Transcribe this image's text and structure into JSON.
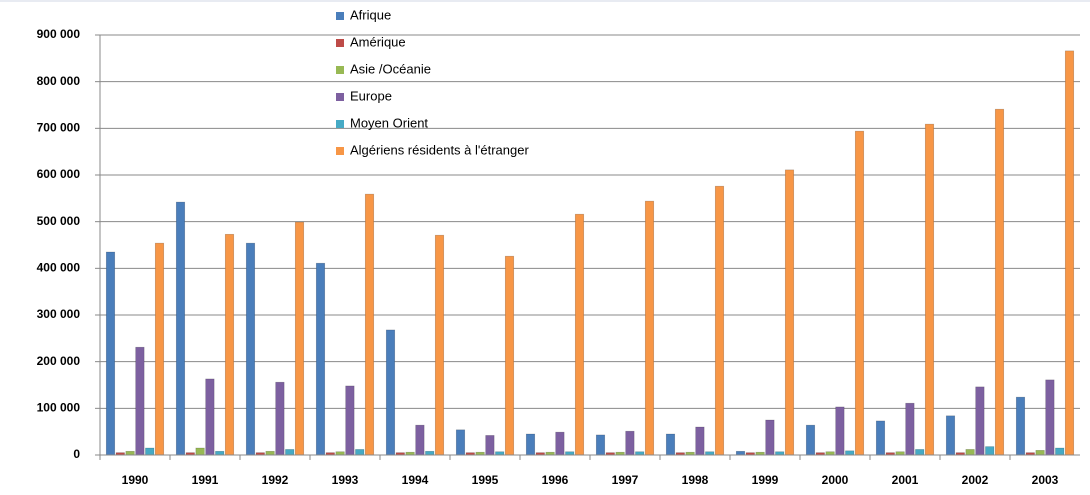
{
  "chart_data": {
    "type": "bar",
    "categories": [
      "1990",
      "1991",
      "1992",
      "1993",
      "1994",
      "1995",
      "1996",
      "1997",
      "1998",
      "1999",
      "2000",
      "2001",
      "2002",
      "2003"
    ],
    "series": [
      {
        "name": "Afrique",
        "color": "#4a7ebb",
        "values": [
          435000,
          542000,
          454000,
          411000,
          268000,
          54000,
          45000,
          43000,
          45000,
          8000,
          64000,
          73000,
          84000,
          124000
        ]
      },
      {
        "name": "Amérique",
        "color": "#be4b48",
        "values": [
          5000,
          5000,
          5000,
          5000,
          5000,
          5000,
          5000,
          5000,
          5000,
          5000,
          5000,
          5000,
          5000,
          5000
        ]
      },
      {
        "name": "Asie /Océanie",
        "color": "#98b954",
        "values": [
          8000,
          15000,
          8000,
          7000,
          6000,
          6000,
          6000,
          6000,
          6000,
          6000,
          7000,
          7000,
          12000,
          10000
        ]
      },
      {
        "name": "Europe",
        "color": "#7d60a0",
        "values": [
          231000,
          163000,
          156000,
          148000,
          64000,
          42000,
          49000,
          51000,
          60000,
          75000,
          103000,
          111000,
          146000,
          161000
        ]
      },
      {
        "name": "Moyen Orient",
        "color": "#46aac5",
        "values": [
          15000,
          8000,
          12000,
          12000,
          8000,
          7000,
          7000,
          7000,
          7000,
          7000,
          9000,
          12000,
          18000,
          15000
        ]
      },
      {
        "name": "Algériens résidents à l'étranger",
        "color": "#f79646",
        "values": [
          454000,
          473000,
          499000,
          559000,
          471000,
          426000,
          516000,
          544000,
          576000,
          611000,
          694000,
          709000,
          741000,
          866000
        ]
      }
    ],
    "ylim": [
      0,
      900000
    ],
    "yticks": [
      0,
      {
        "value": 100000,
        "label": "100 000"
      },
      {
        "value": 200000,
        "label": "200 000"
      },
      {
        "value": 300000,
        "label": "300 000"
      },
      {
        "value": 400000,
        "label": "400 000"
      },
      {
        "value": 500000,
        "label": "500 000"
      },
      {
        "value": 600000,
        "label": "600 000"
      },
      {
        "value": 700000,
        "label": "700 000"
      },
      {
        "value": 800000,
        "label": "800 000"
      },
      {
        "value": 900000,
        "label": "900 000"
      }
    ],
    "grid": true,
    "legend": "top"
  }
}
